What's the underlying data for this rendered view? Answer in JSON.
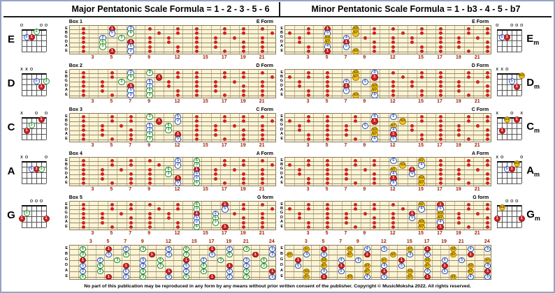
{
  "header": {
    "major_title": "Major Pentatonic Scale Formula = 1 - 2 - 3 - 5 - 6",
    "minor_title": "Minor Pentatonic Scale Formula = 1 - b3 - 4 - 5 - b7"
  },
  "strings": [
    "E",
    "B",
    "G",
    "D",
    "A",
    "E"
  ],
  "main_fret_numbers": [
    3,
    5,
    7,
    9,
    12,
    15,
    17,
    19,
    21
  ],
  "bottom_fret_numbers": [
    3,
    5,
    7,
    9,
    12,
    15,
    17,
    19,
    21,
    24
  ],
  "rows": [
    {
      "box_label": "Box 1",
      "major_form": "E Form",
      "minor_form": "E Form",
      "left_chord": "E",
      "right_chord": "Em",
      "major_box": [
        4,
        7
      ],
      "minor_box": [
        5,
        8
      ]
    },
    {
      "box_label": "Box 2",
      "major_form": "D Form",
      "minor_form": "D Form",
      "left_chord": "D",
      "right_chord": "Dm",
      "major_box": [
        6,
        10
      ],
      "minor_box": [
        7,
        10
      ]
    },
    {
      "box_label": "Box 3",
      "major_form": "C Form",
      "minor_form": "C Form",
      "left_chord": "C",
      "right_chord": "Cm",
      "major_box": [
        9,
        12
      ],
      "minor_box": [
        9,
        13
      ]
    },
    {
      "box_label": "Box 4",
      "major_form": "A Form",
      "minor_form": "A Form",
      "left_chord": "A",
      "right_chord": "Am",
      "major_box": [
        11,
        14
      ],
      "minor_box": [
        12,
        15
      ]
    },
    {
      "box_label": "Box 5",
      "major_form": "G form",
      "minor_form": "G form",
      "left_chord": "G",
      "right_chord": "Gm",
      "major_box": [
        14,
        17
      ],
      "minor_box": [
        14,
        17
      ]
    }
  ],
  "chart_data": {
    "type": "fretboard-scale-diagrams",
    "major_scale": {
      "formula": [
        "1",
        "2",
        "3",
        "5",
        "6"
      ],
      "frets_by_string": [
        [
          [
            2,
            "6"
          ],
          [
            5,
            "1"
          ],
          [
            7,
            "2"
          ],
          [
            9,
            "3"
          ],
          [
            12,
            "5"
          ],
          [
            14,
            "6"
          ],
          [
            17,
            "1"
          ],
          [
            19,
            "2"
          ],
          [
            21,
            "3"
          ],
          [
            24,
            "5"
          ]
        ],
        [
          [
            2,
            "3"
          ],
          [
            5,
            "5"
          ],
          [
            7,
            "6"
          ],
          [
            10,
            "1"
          ],
          [
            12,
            "2"
          ],
          [
            14,
            "3"
          ],
          [
            17,
            "5"
          ],
          [
            19,
            "6"
          ],
          [
            22,
            "1"
          ],
          [
            24,
            "2"
          ]
        ],
        [
          [
            2,
            "1"
          ],
          [
            4,
            "2"
          ],
          [
            6,
            "3"
          ],
          [
            9,
            "5"
          ],
          [
            11,
            "6"
          ],
          [
            14,
            "1"
          ],
          [
            16,
            "2"
          ],
          [
            18,
            "3"
          ],
          [
            21,
            "5"
          ],
          [
            23,
            "6"
          ]
        ],
        [
          [
            2,
            "5"
          ],
          [
            4,
            "6"
          ],
          [
            7,
            "1"
          ],
          [
            9,
            "2"
          ],
          [
            11,
            "3"
          ],
          [
            14,
            "5"
          ],
          [
            16,
            "6"
          ],
          [
            19,
            "1"
          ],
          [
            21,
            "2"
          ],
          [
            23,
            "3"
          ]
        ],
        [
          [
            2,
            "2"
          ],
          [
            4,
            "3"
          ],
          [
            7,
            "5"
          ],
          [
            9,
            "6"
          ],
          [
            12,
            "1"
          ],
          [
            14,
            "2"
          ],
          [
            16,
            "3"
          ],
          [
            19,
            "5"
          ],
          [
            21,
            "6"
          ],
          [
            24,
            "1"
          ]
        ],
        [
          [
            2,
            "6"
          ],
          [
            5,
            "1"
          ],
          [
            7,
            "2"
          ],
          [
            9,
            "3"
          ],
          [
            12,
            "5"
          ],
          [
            14,
            "6"
          ],
          [
            17,
            "1"
          ],
          [
            19,
            "2"
          ],
          [
            21,
            "3"
          ],
          [
            24,
            "5"
          ]
        ]
      ]
    },
    "minor_scale": {
      "formula": [
        "1",
        "b3",
        "4",
        "5",
        "b7"
      ],
      "frets_by_string": [
        [
          [
            3,
            "b7"
          ],
          [
            5,
            "1"
          ],
          [
            8,
            "b3"
          ],
          [
            10,
            "4"
          ],
          [
            12,
            "5"
          ],
          [
            15,
            "b7"
          ],
          [
            17,
            "1"
          ],
          [
            20,
            "b3"
          ],
          [
            22,
            "4"
          ],
          [
            24,
            "5"
          ]
        ],
        [
          [
            1,
            "b3"
          ],
          [
            3,
            "4"
          ],
          [
            5,
            "5"
          ],
          [
            8,
            "b7"
          ],
          [
            10,
            "1"
          ],
          [
            13,
            "b3"
          ],
          [
            15,
            "4"
          ],
          [
            17,
            "5"
          ],
          [
            20,
            "b7"
          ],
          [
            22,
            "1"
          ]
        ],
        [
          [
            2,
            "1"
          ],
          [
            5,
            "b3"
          ],
          [
            7,
            "4"
          ],
          [
            9,
            "5"
          ],
          [
            12,
            "b7"
          ],
          [
            14,
            "1"
          ],
          [
            17,
            "b3"
          ],
          [
            19,
            "4"
          ],
          [
            21,
            "5"
          ],
          [
            24,
            "b7"
          ]
        ],
        [
          [
            2,
            "5"
          ],
          [
            5,
            "b7"
          ],
          [
            7,
            "1"
          ],
          [
            10,
            "b3"
          ],
          [
            12,
            "4"
          ],
          [
            14,
            "5"
          ],
          [
            17,
            "b7"
          ],
          [
            19,
            "1"
          ],
          [
            22,
            "b3"
          ],
          [
            24,
            "4"
          ]
        ],
        [
          [
            3,
            "b3"
          ],
          [
            5,
            "4"
          ],
          [
            7,
            "5"
          ],
          [
            10,
            "b7"
          ],
          [
            12,
            "1"
          ],
          [
            15,
            "b3"
          ],
          [
            17,
            "4"
          ],
          [
            19,
            "5"
          ],
          [
            22,
            "b7"
          ],
          [
            24,
            "1"
          ]
        ],
        [
          [
            3,
            "b7"
          ],
          [
            5,
            "1"
          ],
          [
            8,
            "b3"
          ],
          [
            10,
            "4"
          ],
          [
            12,
            "5"
          ],
          [
            15,
            "b7"
          ],
          [
            17,
            "1"
          ],
          [
            20,
            "b3"
          ],
          [
            22,
            "4"
          ],
          [
            24,
            "5"
          ]
        ]
      ]
    },
    "degree_styles": {
      "1": {
        "bg": "#d42020",
        "border": "#8e1212",
        "text": "#ffffff"
      },
      "2": {
        "bg": "#ffffff",
        "border": "#2a52be",
        "text": "#2a52be"
      },
      "3": {
        "bg": "#ffffff",
        "border": "#1a8a2a",
        "text": "#1a8a2a"
      },
      "4": {
        "bg": "#ffffff",
        "border": "#2a52be",
        "text": "#2a52be"
      },
      "5": {
        "bg": "#ffffff",
        "border": "#2a52be",
        "text": "#2a52be"
      },
      "6": {
        "bg": "#ffffff",
        "border": "#1a8a2a",
        "text": "#1a8a2a"
      },
      "b3": {
        "bg": "#f2c21c",
        "border": "#a87e00",
        "text": "#5c4500"
      },
      "b7": {
        "bg": "#f2c21c",
        "border": "#a87e00",
        "text": "#5c4500"
      }
    },
    "other_note_dot_color": "#cf2323"
  },
  "chords": {
    "E": {
      "marks": [
        "o",
        "",
        "",
        "",
        "o",
        "o"
      ],
      "dots": [
        {
          "s": 1,
          "f": 2,
          "d": "5"
        },
        {
          "s": 2,
          "f": 2,
          "d": "1"
        },
        {
          "s": 3,
          "f": 1,
          "d": "3"
        }
      ]
    },
    "D": {
      "marks": [
        "x",
        "x",
        "o",
        "",
        "",
        ""
      ],
      "dots": [
        {
          "s": 3,
          "f": 2,
          "d": "5"
        },
        {
          "s": 4,
          "f": 3,
          "d": "1"
        },
        {
          "s": 5,
          "f": 2,
          "d": "3"
        }
      ]
    },
    "C": {
      "marks": [
        "x",
        "",
        "",
        "o",
        "",
        "o"
      ],
      "dots": [
        {
          "s": 1,
          "f": 3,
          "d": "1"
        },
        {
          "s": 2,
          "f": 2,
          "d": "3"
        },
        {
          "s": 4,
          "f": 1,
          "d": "1"
        }
      ]
    },
    "A": {
      "marks": [
        "x",
        "o",
        "",
        "",
        "",
        "o"
      ],
      "dots": [
        {
          "s": 2,
          "f": 2,
          "d": "5"
        },
        {
          "s": 3,
          "f": 2,
          "d": "1"
        },
        {
          "s": 4,
          "f": 2,
          "d": "3"
        }
      ]
    },
    "G": {
      "marks": [
        "",
        "",
        "o",
        "o",
        "o",
        ""
      ],
      "dots": [
        {
          "s": 0,
          "f": 3,
          "d": "1"
        },
        {
          "s": 1,
          "f": 2,
          "d": "3"
        },
        {
          "s": 5,
          "f": 3,
          "d": "1"
        }
      ]
    },
    "Em": {
      "marks": [
        "o",
        "",
        "",
        "o",
        "o",
        "o"
      ],
      "dots": [
        {
          "s": 1,
          "f": 2,
          "d": "5"
        },
        {
          "s": 2,
          "f": 2,
          "d": "1"
        }
      ]
    },
    "Dm": {
      "marks": [
        "x",
        "x",
        "o",
        "",
        "",
        ""
      ],
      "dots": [
        {
          "s": 3,
          "f": 2,
          "d": "5"
        },
        {
          "s": 4,
          "f": 3,
          "d": "1"
        },
        {
          "s": 5,
          "f": 1,
          "d": "b3"
        }
      ]
    },
    "Cm": {
      "marks": [
        "x",
        "",
        "",
        "o",
        "",
        "x"
      ],
      "dots": [
        {
          "s": 1,
          "f": 3,
          "d": "1"
        },
        {
          "s": 2,
          "f": 1,
          "d": "b3"
        },
        {
          "s": 4,
          "f": 1,
          "d": "1"
        }
      ]
    },
    "Am": {
      "marks": [
        "x",
        "o",
        "",
        "",
        "",
        "o"
      ],
      "dots": [
        {
          "s": 2,
          "f": 2,
          "d": "5"
        },
        {
          "s": 3,
          "f": 2,
          "d": "1"
        },
        {
          "s": 4,
          "f": 1,
          "d": "b3"
        }
      ]
    },
    "Gm": {
      "marks": [
        "",
        "",
        "o",
        "o",
        "o",
        ""
      ],
      "dots": [
        {
          "s": 0,
          "f": 3,
          "d": "1"
        },
        {
          "s": 1,
          "f": 1,
          "d": "b3"
        },
        {
          "s": 5,
          "f": 3,
          "d": "1"
        }
      ]
    }
  },
  "footer": "No part of this publication may be reproduced in any form by any means without prior written consent of the publisher. Copyright © MusicMoksha 2022. All rights reserved."
}
